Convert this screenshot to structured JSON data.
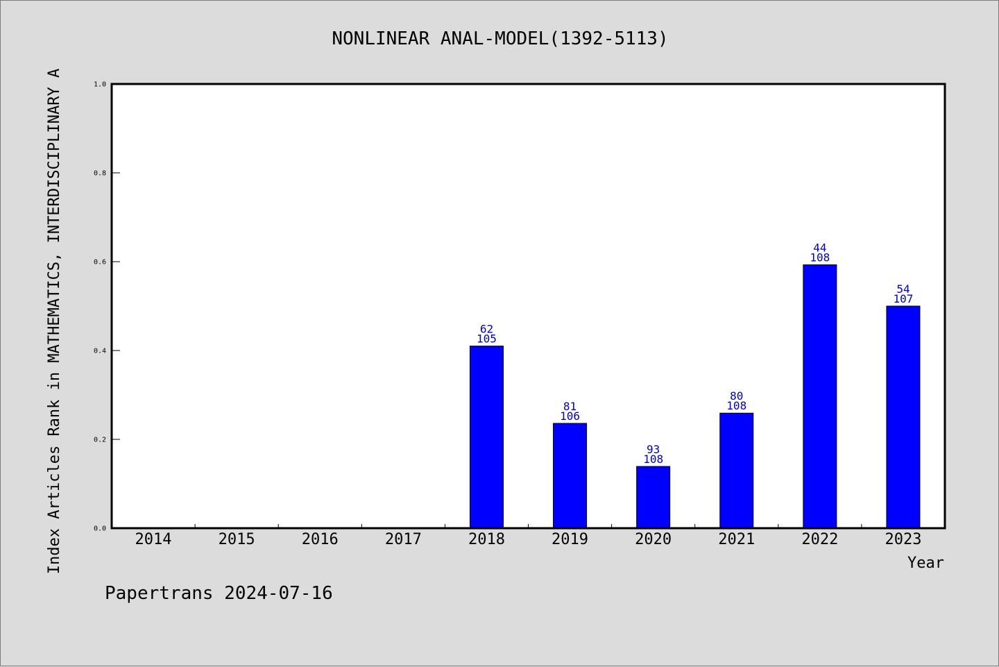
{
  "chart_data": {
    "type": "bar",
    "title": "NONLINEAR ANAL-MODEL(1392-5113)",
    "xlabel": "Year",
    "ylabel": "Index Articles Rank in MATHEMATICS,  INTERDISCIPLINARY A",
    "categories": [
      "2014",
      "2015",
      "2016",
      "2017",
      "2018",
      "2019",
      "2020",
      "2021",
      "2022",
      "2023"
    ],
    "values": [
      null,
      null,
      null,
      null,
      0.41,
      0.236,
      0.139,
      0.259,
      0.593,
      0.5
    ],
    "rank_labels": [
      "",
      "",
      "",
      "",
      "62",
      "81",
      "93",
      "80",
      "44",
      "54"
    ],
    "total_labels": [
      "",
      "",
      "",
      "",
      "105",
      "106",
      "108",
      "108",
      "108",
      "107"
    ],
    "ylim": [
      0,
      1.0
    ],
    "yticks": [
      "0.0",
      "0.2",
      "0.4",
      "0.6",
      "0.8",
      "1.0"
    ],
    "ytick_values": [
      0,
      0.2,
      0.4,
      0.6,
      0.8,
      1.0
    ],
    "bar_color": "#0000ff",
    "label_color": "#0000cc",
    "grid": false,
    "legend": "none"
  },
  "footer": "Papertrans 2024-07-16"
}
